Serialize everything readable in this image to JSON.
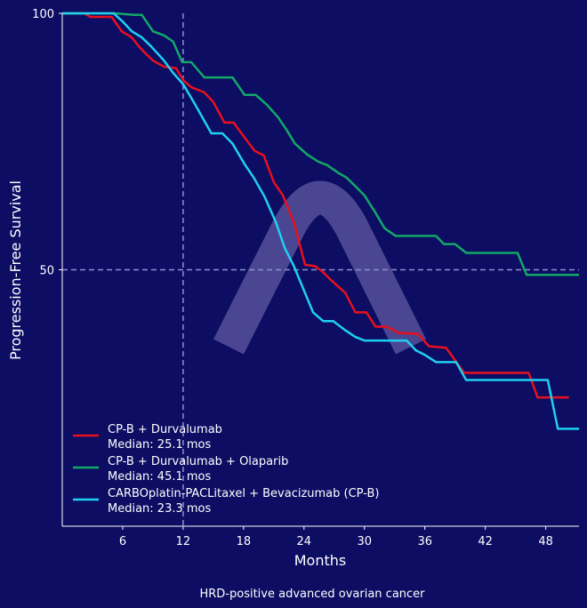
{
  "chart_data": {
    "type": "line",
    "title": "",
    "caption": "HRD-positive advanced ovarian cancer",
    "xlabel": "Months",
    "ylabel": "Progression-Free Survival",
    "xlim": [
      0,
      51.3
    ],
    "ylim": [
      0,
      100
    ],
    "xticks": [
      6,
      12,
      18,
      24,
      30,
      36,
      42,
      48
    ],
    "yticks": [
      50,
      100
    ],
    "reference_lines": {
      "x": 12,
      "y": 50
    },
    "legend_placement": "lower-left",
    "series": [
      {
        "name": "CP-B + Durvalumab",
        "median": "Median: 25.1 mos",
        "color": "#e8101e",
        "points": [
          [
            0,
            100
          ],
          [
            2.2,
            100
          ],
          [
            2.8,
            99.3
          ],
          [
            4.9,
            99.3
          ],
          [
            5.9,
            96.5
          ],
          [
            6.9,
            95.3
          ],
          [
            7.8,
            93.1
          ],
          [
            9.0,
            90.8
          ],
          [
            10.1,
            89.6
          ],
          [
            11.3,
            89.3
          ],
          [
            12.0,
            87.0
          ],
          [
            12.8,
            85.6
          ],
          [
            14.1,
            84.6
          ],
          [
            15.0,
            82.7
          ],
          [
            16.1,
            78.7
          ],
          [
            17.0,
            78.7
          ],
          [
            18.1,
            75.8
          ],
          [
            19.1,
            73.2
          ],
          [
            20.0,
            72.3
          ],
          [
            21.0,
            67.1
          ],
          [
            21.9,
            64.5
          ],
          [
            23.0,
            59.3
          ],
          [
            24.1,
            51.0
          ],
          [
            25.1,
            50.7
          ],
          [
            25.8,
            49.7
          ],
          [
            26.9,
            47.6
          ],
          [
            28.1,
            45.5
          ],
          [
            29.1,
            41.7
          ],
          [
            30.2,
            41.7
          ],
          [
            31.1,
            38.9
          ],
          [
            32.2,
            38.9
          ],
          [
            33.4,
            37.7
          ],
          [
            35.3,
            37.5
          ],
          [
            36.4,
            35.1
          ],
          [
            38.1,
            34.8
          ],
          [
            39.9,
            29.9
          ],
          [
            46.3,
            29.9
          ],
          [
            47.2,
            25.1
          ],
          [
            50.3,
            25.1
          ]
        ]
      },
      {
        "name": "CP-B + Durvalumab + Olaparib",
        "median": "Median: 45.1 mos",
        "color": "#12a868",
        "points": [
          [
            0,
            100
          ],
          [
            5.3,
            100
          ],
          [
            7.1,
            99.7
          ],
          [
            7.9,
            99.7
          ],
          [
            9.0,
            96.5
          ],
          [
            10.1,
            95.7
          ],
          [
            11.0,
            94.5
          ],
          [
            11.9,
            90.5
          ],
          [
            12.8,
            90.5
          ],
          [
            14.1,
            87.5
          ],
          [
            16.9,
            87.5
          ],
          [
            18.1,
            84.1
          ],
          [
            19.2,
            84.1
          ],
          [
            20.3,
            82.2
          ],
          [
            21.4,
            79.8
          ],
          [
            22.2,
            77.5
          ],
          [
            23.1,
            74.6
          ],
          [
            24.3,
            72.5
          ],
          [
            25.4,
            71.1
          ],
          [
            26.3,
            70.4
          ],
          [
            27.4,
            68.9
          ],
          [
            28.2,
            68.0
          ],
          [
            29.1,
            66.3
          ],
          [
            30.0,
            64.5
          ],
          [
            31.1,
            61.1
          ],
          [
            32.0,
            58.1
          ],
          [
            33.1,
            56.6
          ],
          [
            37.1,
            56.6
          ],
          [
            37.9,
            55.0
          ],
          [
            39.0,
            55.0
          ],
          [
            40.1,
            53.3
          ],
          [
            45.2,
            53.3
          ],
          [
            46.1,
            49.0
          ],
          [
            51.3,
            49.0
          ]
        ]
      },
      {
        "name": "CARBOplatin-PACLitaxel + Bevacizumab (CP-B)",
        "median": "Median: 23.3 mos",
        "color": "#1fd0f0",
        "points": [
          [
            0,
            100
          ],
          [
            5.1,
            100
          ],
          [
            6.0,
            98.4
          ],
          [
            6.9,
            96.5
          ],
          [
            7.9,
            95.3
          ],
          [
            8.8,
            93.6
          ],
          [
            10.1,
            90.8
          ],
          [
            11.0,
            88.4
          ],
          [
            12.0,
            86.2
          ],
          [
            13.2,
            82.2
          ],
          [
            14.8,
            76.6
          ],
          [
            15.9,
            76.6
          ],
          [
            16.9,
            74.6
          ],
          [
            18.1,
            70.6
          ],
          [
            19.0,
            68.0
          ],
          [
            20.1,
            64.2
          ],
          [
            21.2,
            59.3
          ],
          [
            22.1,
            54.2
          ],
          [
            23.0,
            50.7
          ],
          [
            23.8,
            46.9
          ],
          [
            24.9,
            41.7
          ],
          [
            25.9,
            40.0
          ],
          [
            26.9,
            40.0
          ],
          [
            28.1,
            38.2
          ],
          [
            29.1,
            36.9
          ],
          [
            30.0,
            36.2
          ],
          [
            34.2,
            36.2
          ],
          [
            35.1,
            34.3
          ],
          [
            36.0,
            33.4
          ],
          [
            37.1,
            32.0
          ],
          [
            39.1,
            32.0
          ],
          [
            40.1,
            28.5
          ],
          [
            48.2,
            28.5
          ],
          [
            49.2,
            19.0
          ],
          [
            51.3,
            19.0
          ]
        ]
      }
    ]
  }
}
